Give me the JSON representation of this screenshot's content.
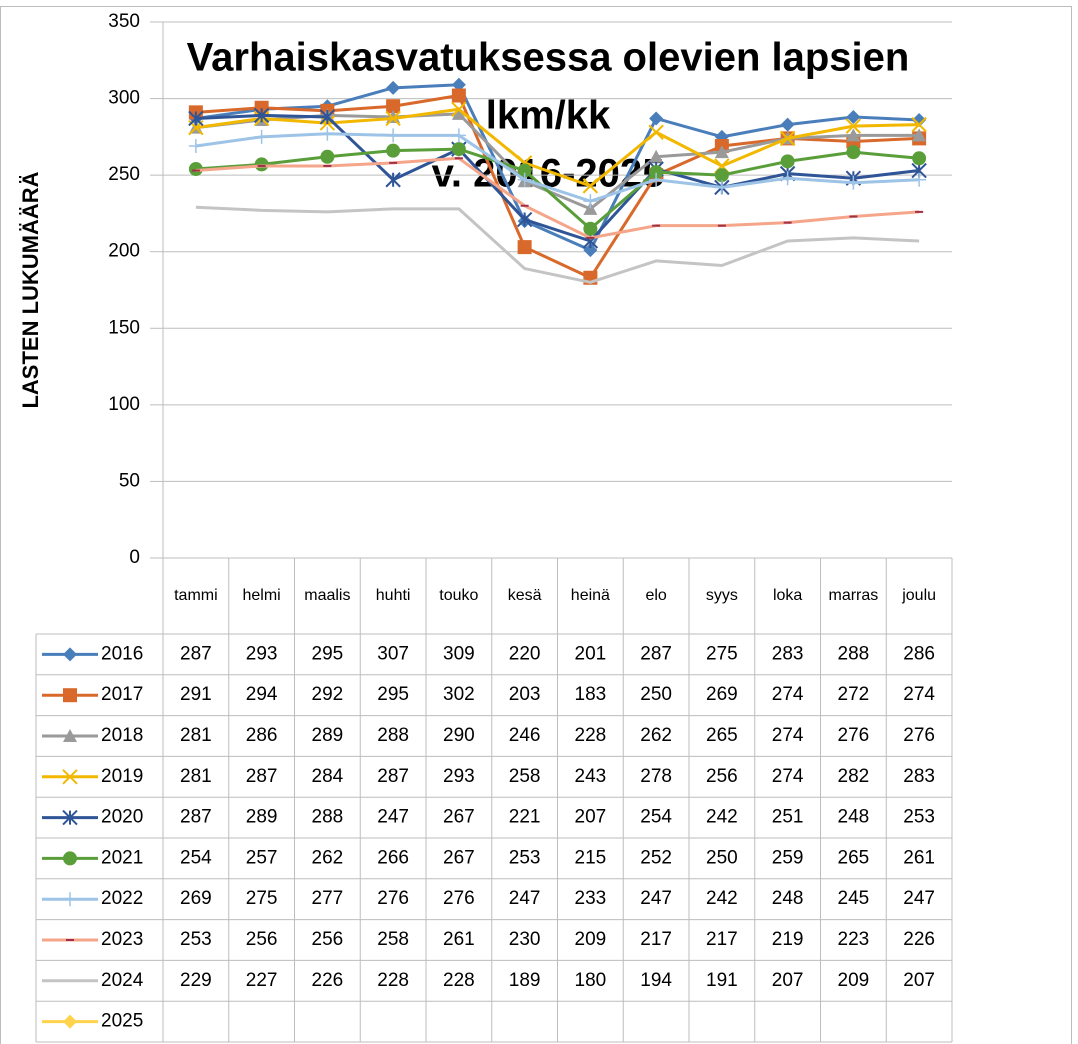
{
  "chart_data": {
    "type": "line",
    "title_lines": [
      "Varhaiskasvatuksessa olevien lapsien",
      "lkm/kk",
      "v. 2016-2025"
    ],
    "y_label": "LASTEN LUKUMÄÄRÄ",
    "categories": [
      "tammi",
      "helmi",
      "maalis",
      "huhti",
      "touko",
      "kesä",
      "heinä",
      "elo",
      "syys",
      "loka",
      "marras",
      "joulu"
    ],
    "ylim": [
      0,
      350
    ],
    "yticks": [
      0,
      50,
      100,
      150,
      200,
      250,
      300,
      350
    ],
    "grid": true,
    "series": [
      {
        "name": "2016",
        "color": "#4a7ebb",
        "marker": "diamond",
        "values": [
          287,
          293,
          295,
          307,
          309,
          220,
          201,
          287,
          275,
          283,
          288,
          286
        ]
      },
      {
        "name": "2017",
        "color": "#d9692a",
        "marker": "square",
        "values": [
          291,
          294,
          292,
          295,
          302,
          203,
          183,
          250,
          269,
          274,
          272,
          274
        ]
      },
      {
        "name": "2018",
        "color": "#9a9a9a",
        "marker": "triangle",
        "values": [
          281,
          286,
          289,
          288,
          290,
          246,
          228,
          262,
          265,
          274,
          276,
          276
        ]
      },
      {
        "name": "2019",
        "color": "#f2b800",
        "marker": "x",
        "values": [
          281,
          287,
          284,
          287,
          293,
          258,
          243,
          278,
          256,
          274,
          282,
          283
        ]
      },
      {
        "name": "2020",
        "color": "#2f5597",
        "marker": "star",
        "values": [
          287,
          289,
          288,
          247,
          267,
          221,
          207,
          254,
          242,
          251,
          248,
          253
        ]
      },
      {
        "name": "2021",
        "color": "#5a9e3a",
        "marker": "circle",
        "values": [
          254,
          257,
          262,
          266,
          267,
          253,
          215,
          252,
          250,
          259,
          265,
          261
        ]
      },
      {
        "name": "2022",
        "color": "#9dc3e6",
        "marker": "plus",
        "values": [
          269,
          275,
          277,
          276,
          276,
          247,
          233,
          247,
          242,
          248,
          245,
          247
        ]
      },
      {
        "name": "2023",
        "color": "#f4a58a",
        "marker": "dash",
        "values": [
          253,
          256,
          256,
          258,
          261,
          230,
          209,
          217,
          217,
          219,
          223,
          226
        ]
      },
      {
        "name": "2024",
        "color": "#c4c4c4",
        "marker": "none",
        "values": [
          229,
          227,
          226,
          228,
          228,
          189,
          180,
          194,
          191,
          207,
          209,
          207
        ]
      },
      {
        "name": "2025",
        "color": "#ffd34d",
        "marker": "diamond",
        "values": [
          null,
          null,
          null,
          null,
          null,
          null,
          null,
          null,
          null,
          null,
          null,
          null
        ]
      }
    ]
  }
}
